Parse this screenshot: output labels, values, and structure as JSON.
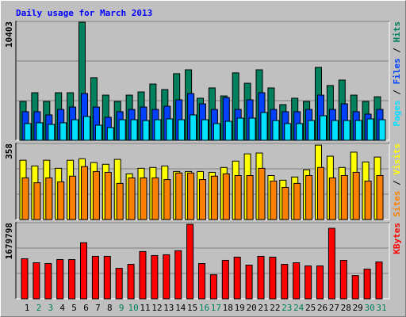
{
  "chart_data": [
    {
      "type": "bar",
      "title": "Daily usage for March 2013",
      "legend_separator": " / ",
      "ylim": [
        0,
        10403
      ],
      "yticks": [
        10403
      ],
      "series": [
        {
          "name": "Hits",
          "color": "#00805c",
          "values": [
            3400,
            4160,
            3400,
            4160,
            4160,
            10330,
            5480,
            3950,
            3400,
            3950,
            4230,
            4920,
            4440,
            5830,
            6170,
            3680,
            4580,
            3880,
            5900,
            4990,
            6170,
            4580,
            3120,
            3680,
            3400,
            6380,
            4790,
            5270,
            3950,
            3400,
            3810
          ]
        },
        {
          "name": "Files",
          "color": "#0040ff",
          "values": [
            2500,
            2500,
            2220,
            2700,
            2910,
            4090,
            2910,
            2010,
            2500,
            2700,
            2910,
            2700,
            2980,
            3540,
            4090,
            3190,
            2700,
            3740,
            2700,
            3540,
            4160,
            2700,
            2500,
            2500,
            2700,
            3950,
            2700,
            3190,
            2500,
            2290,
            2700
          ]
        },
        {
          "name": "Pages",
          "color": "#00e0ff",
          "values": [
            1460,
            1530,
            1390,
            1530,
            1800,
            2080,
            1320,
            1110,
            1800,
            1800,
            1730,
            1800,
            1870,
            1800,
            2220,
            1800,
            1460,
            1660,
            1940,
            1940,
            2430,
            1730,
            1460,
            1460,
            1730,
            2150,
            1730,
            1730,
            1730,
            1870,
            1800
          ]
        }
      ]
    },
    {
      "type": "bar",
      "legend_separator": " / ",
      "ylim": [
        0,
        358
      ],
      "yticks": [
        358
      ],
      "series": [
        {
          "name": "Visits",
          "color": "#ffff00",
          "values": [
            279,
            252,
            279,
            241,
            279,
            286,
            268,
            260,
            283,
            215,
            241,
            245,
            252,
            226,
            226,
            226,
            222,
            245,
            275,
            309,
            313,
            207,
            185,
            200,
            234,
            350,
            298,
            245,
            317,
            271,
            294
          ]
        },
        {
          "name": "Sites",
          "color": "#ff8000",
          "values": [
            196,
            173,
            196,
            177,
            204,
            249,
            226,
            222,
            170,
            196,
            196,
            196,
            188,
            219,
            219,
            188,
            204,
            215,
            207,
            207,
            241,
            181,
            151,
            170,
            207,
            245,
            196,
            207,
            222,
            181,
            207
          ]
        }
      ]
    },
    {
      "type": "bar",
      "ylim": [
        0,
        1679798
      ],
      "yticks": [
        1679798
      ],
      "categories": [
        "1",
        "2",
        "3",
        "4",
        "5",
        "6",
        "7",
        "8",
        "9",
        "10",
        "11",
        "12",
        "13",
        "14",
        "15",
        "16",
        "17",
        "18",
        "19",
        "20",
        "21",
        "22",
        "23",
        "24",
        "25",
        "26",
        "27",
        "28",
        "29",
        "30",
        "31"
      ],
      "category_colors": [
        "#000000",
        "#00805c",
        "#00805c",
        "#000000",
        "#000000",
        "#000000",
        "#000000",
        "#000000",
        "#00805c",
        "#00805c",
        "#000000",
        "#000000",
        "#000000",
        "#000000",
        "#000000",
        "#00805c",
        "#00805c",
        "#000000",
        "#000000",
        "#000000",
        "#000000",
        "#000000",
        "#00805c",
        "#00805c",
        "#000000",
        "#000000",
        "#000000",
        "#000000",
        "#000000",
        "#00805c",
        "#00805c"
      ],
      "series": [
        {
          "name": "KBytes",
          "color": "#ff0000",
          "values": [
            884000,
            796000,
            778000,
            866000,
            866000,
            1238000,
            937000,
            937000,
            672000,
            760000,
            1043000,
            955000,
            972000,
            1061000,
            1644000,
            778000,
            530000,
            849000,
            919000,
            743000,
            937000,
            919000,
            760000,
            796000,
            725000,
            725000,
            1556000,
            849000,
            513000,
            654000,
            813000
          ]
        }
      ]
    }
  ]
}
